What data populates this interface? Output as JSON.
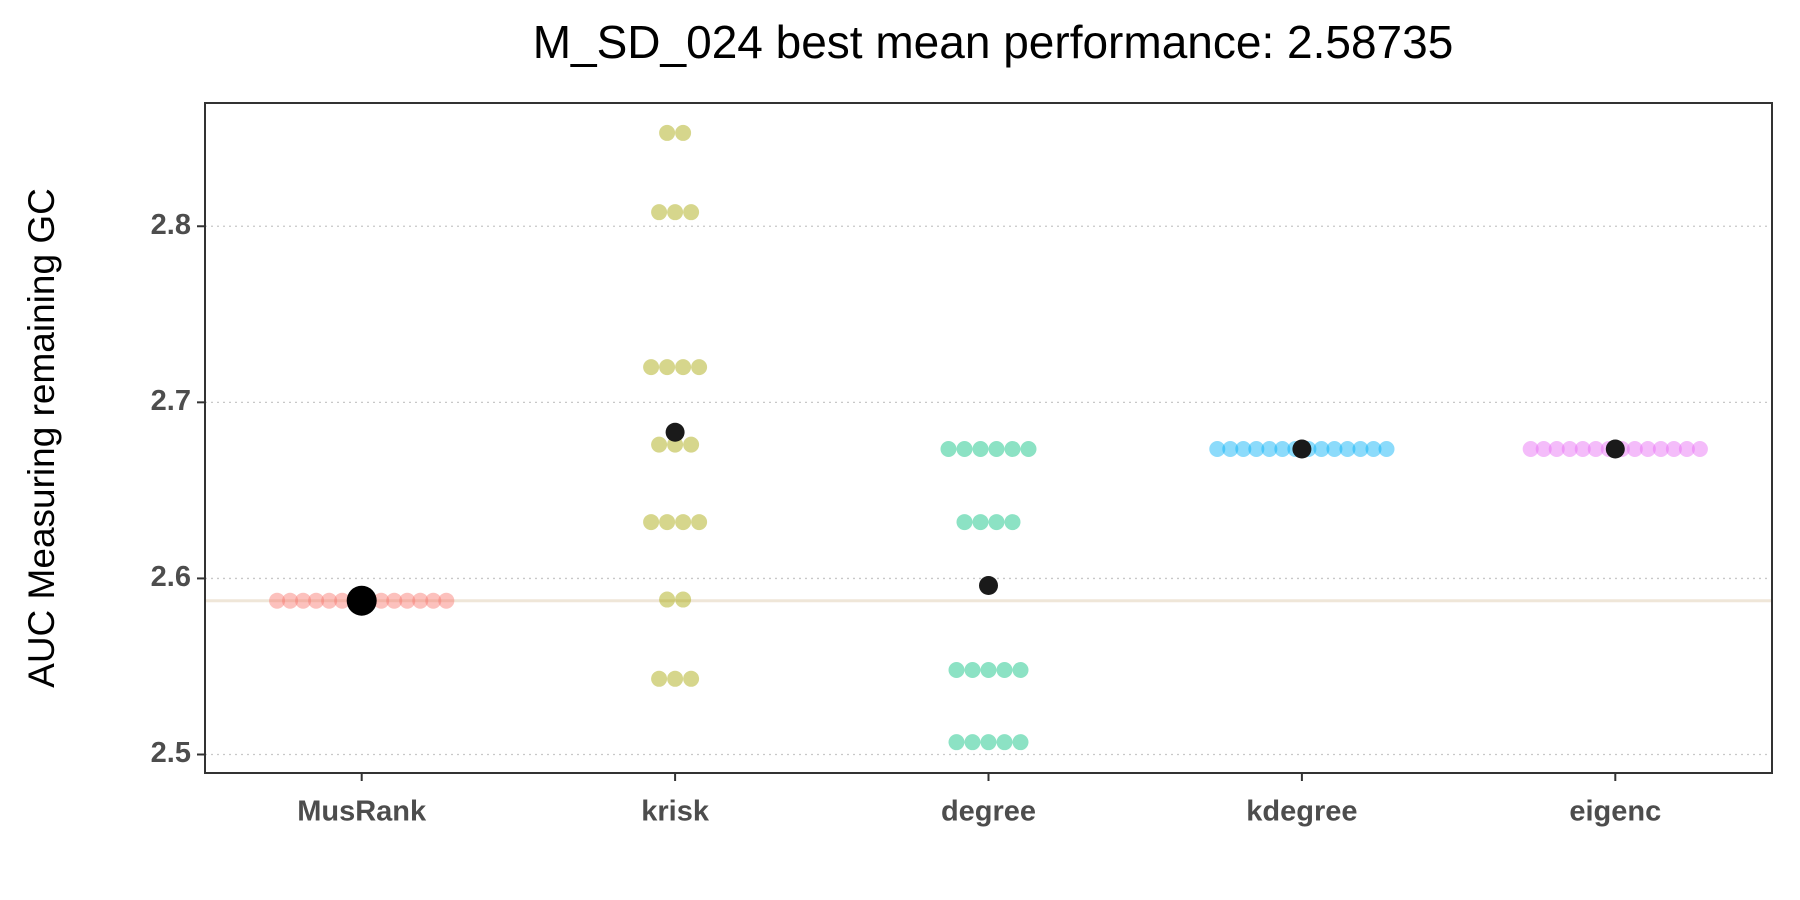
{
  "chart_data": {
    "type": "strip",
    "title": "M_SD_024 best mean performance: 2.58735",
    "y_label": "AUC Measuring remaining GC",
    "categories": [
      "MusRank",
      "krisk",
      "degree",
      "kdegree",
      "eigenc"
    ],
    "colors": [
      "#F8766D",
      "#A3A500",
      "#00BF7D",
      "#00B0F6",
      "#E76BF3"
    ],
    "points": [
      [
        2.58735,
        2.58735,
        2.58735,
        2.58735,
        2.58735,
        2.58735,
        2.58735,
        2.58735,
        2.58735,
        2.58735,
        2.58735,
        2.58735,
        2.58735,
        2.58735
      ],
      [
        2.853,
        2.853,
        2.808,
        2.808,
        2.808,
        2.72,
        2.72,
        2.72,
        2.72,
        2.676,
        2.676,
        2.676,
        2.632,
        2.632,
        2.632,
        2.632,
        2.588,
        2.588,
        2.543,
        2.543,
        2.543
      ],
      [
        2.6735,
        2.6735,
        2.6735,
        2.6735,
        2.6735,
        2.6735,
        2.632,
        2.632,
        2.632,
        2.632,
        2.548,
        2.548,
        2.548,
        2.548,
        2.548,
        2.507,
        2.507,
        2.507,
        2.507,
        2.507
      ],
      [
        2.6735,
        2.6735,
        2.6735,
        2.6735,
        2.6735,
        2.6735,
        2.6735,
        2.6735,
        2.6735,
        2.6735,
        2.6735,
        2.6735,
        2.6735,
        2.6735
      ],
      [
        2.6735,
        2.6735,
        2.6735,
        2.6735,
        2.6735,
        2.6735,
        2.6735,
        2.6735,
        2.6735,
        2.6735,
        2.6735,
        2.6735,
        2.6735,
        2.6735
      ]
    ],
    "means": [
      2.58735,
      2.683,
      2.596,
      2.6735,
      2.6735
    ],
    "mean_color": "#1a1a1a",
    "best_line": 2.58735,
    "best_line_color": "#efe6d8",
    "ylim": [
      2.4895,
      2.87
    ],
    "yticks": [
      2.5,
      2.6,
      2.7,
      2.8
    ],
    "grid": true
  }
}
